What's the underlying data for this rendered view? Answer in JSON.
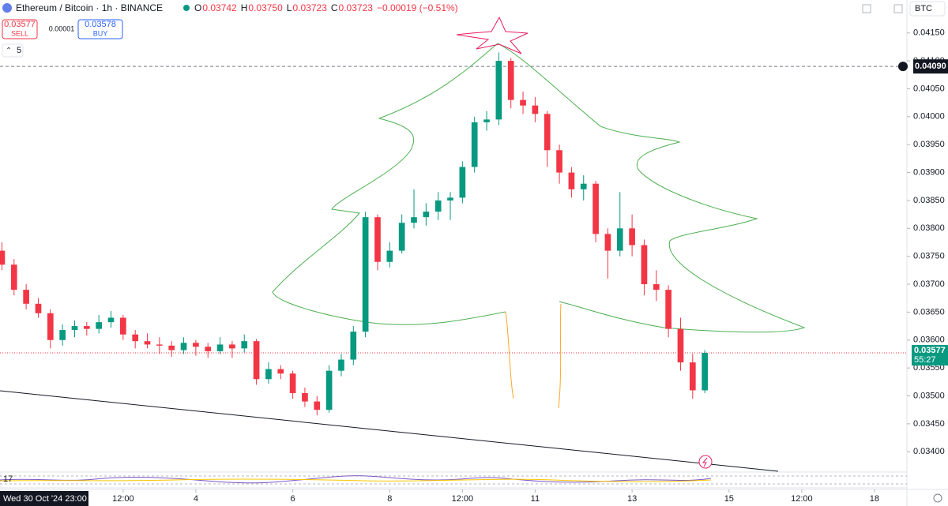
{
  "toolbar": {
    "symbol": "Ethereum / Bitcoin · 1h · BINANCE",
    "ohlc": [
      {
        "label": "O",
        "value": "0.03742"
      },
      {
        "label": "H",
        "value": "0.03750"
      },
      {
        "label": "L",
        "value": "0.03723"
      },
      {
        "label": "C",
        "value": "0.03723"
      }
    ],
    "change": "−0.00019 (−0.51%)",
    "sell": {
      "price": "0.03577",
      "label": "SELL"
    },
    "spread": "0.00001",
    "buy": {
      "price": "0.03578",
      "label": "BUY"
    },
    "indicators_count": "5",
    "currency": "BTC"
  },
  "chart_data": {
    "type": "candlestick",
    "x": [
      0,
      0.25,
      0.5,
      0.75,
      1,
      1.25,
      1.5,
      1.75,
      2,
      2.25,
      2.5,
      2.75,
      3,
      3.25,
      3.5,
      3.75,
      4,
      4.25,
      4.5,
      4.75,
      5,
      5.25,
      5.5,
      5.75,
      6,
      6.25,
      6.5,
      6.75,
      7,
      7.25,
      7.5,
      7.75,
      8,
      8.25,
      8.5,
      8.75,
      9,
      9.25,
      9.5,
      9.75,
      10,
      10.25,
      10.5,
      10.75,
      11,
      11.25,
      11.5,
      11.75,
      12,
      12.25,
      12.5,
      12.75,
      13,
      13.25,
      13.5,
      13.75,
      14,
      14.25,
      14.5
    ],
    "open": [
      0.0376,
      0.03735,
      0.0369,
      0.03665,
      0.03648,
      0.036,
      0.03618,
      0.03625,
      0.0362,
      0.03632,
      0.0364,
      0.0361,
      0.03598,
      0.03592,
      0.0359,
      0.03582,
      0.03595,
      0.03588,
      0.0358,
      0.03592,
      0.03585,
      0.03598,
      0.0353,
      0.03548,
      0.0354,
      0.03505,
      0.0349,
      0.03475,
      0.03545,
      0.03565,
      0.03615,
      0.0382,
      0.0374,
      0.0376,
      0.0381,
      0.0382,
      0.0383,
      0.0385,
      0.03855,
      0.0391,
      0.0399,
      0.03995,
      0.041,
      0.0403,
      0.0402,
      0.04005,
      0.0394,
      0.039,
      0.0387,
      0.0388,
      0.0379,
      0.0376,
      0.038,
      0.0377,
      0.037,
      0.0369,
      0.0362,
      0.0356,
      0.0351
    ],
    "high": [
      0.03775,
      0.03745,
      0.037,
      0.03675,
      0.03655,
      0.03628,
      0.03635,
      0.03632,
      0.03645,
      0.03652,
      0.03645,
      0.03618,
      0.03612,
      0.03605,
      0.03598,
      0.03605,
      0.036,
      0.03595,
      0.03605,
      0.03598,
      0.0361,
      0.03602,
      0.0356,
      0.03555,
      0.03545,
      0.03515,
      0.035,
      0.03555,
      0.03575,
      0.03625,
      0.0383,
      0.03825,
      0.03775,
      0.03825,
      0.0387,
      0.03845,
      0.03865,
      0.03865,
      0.0392,
      0.04,
      0.0401,
      0.04115,
      0.04105,
      0.04045,
      0.04035,
      0.0401,
      0.0395,
      0.0391,
      0.03895,
      0.03885,
      0.038,
      0.03865,
      0.03825,
      0.0378,
      0.03725,
      0.03698,
      0.0364,
      0.03575,
      0.03582
    ],
    "low": [
      0.03725,
      0.0368,
      0.03655,
      0.0364,
      0.03585,
      0.0359,
      0.03605,
      0.03608,
      0.03612,
      0.03622,
      0.036,
      0.03585,
      0.03585,
      0.03575,
      0.0357,
      0.03575,
      0.03572,
      0.03568,
      0.03575,
      0.03568,
      0.03578,
      0.0352,
      0.03522,
      0.0353,
      0.03495,
      0.0348,
      0.03465,
      0.0347,
      0.03535,
      0.03555,
      0.03605,
      0.03725,
      0.0373,
      0.03755,
      0.038,
      0.03805,
      0.03815,
      0.03815,
      0.03845,
      0.039,
      0.03975,
      0.03985,
      0.04015,
      0.04005,
      0.0399,
      0.0391,
      0.0388,
      0.03855,
      0.0385,
      0.03775,
      0.0371,
      0.0375,
      0.0375,
      0.0368,
      0.0367,
      0.03605,
      0.03545,
      0.03495,
      0.03505
    ],
    "close": [
      0.03735,
      0.0369,
      0.03665,
      0.03648,
      0.036,
      0.03618,
      0.03625,
      0.0362,
      0.03632,
      0.0364,
      0.0361,
      0.03598,
      0.03592,
      0.0359,
      0.03582,
      0.03595,
      0.03588,
      0.0358,
      0.03592,
      0.03585,
      0.03598,
      0.0353,
      0.03548,
      0.0354,
      0.03505,
      0.0349,
      0.03475,
      0.03545,
      0.03565,
      0.03615,
      0.0382,
      0.0374,
      0.0376,
      0.0381,
      0.0382,
      0.0383,
      0.0385,
      0.03855,
      0.0391,
      0.0399,
      0.03995,
      0.041,
      0.0403,
      0.0402,
      0.04005,
      0.0394,
      0.039,
      0.0387,
      0.0388,
      0.0379,
      0.0376,
      0.038,
      0.0377,
      0.037,
      0.0369,
      0.0362,
      0.0356,
      0.0351,
      0.03577
    ],
    "up_color": "#089981",
    "down_color": "#f23645",
    "xlim": [
      -0.04,
      18.67
    ],
    "xticks": [
      {
        "value": 2.5,
        "label": "12:00"
      },
      4,
      6,
      8,
      {
        "value": 9.5,
        "label": "12:00"
      },
      11,
      13,
      15,
      {
        "value": 16.5,
        "label": "12:00"
      },
      18
    ],
    "ylim": [
      0.03365,
      0.04209
    ],
    "yticks": [
      {
        "value": 0.034,
        "label": "0.03400"
      },
      {
        "value": 0.0345,
        "label": "0.03450"
      },
      {
        "value": 0.035,
        "label": "0.03500"
      },
      {
        "value": 0.0355,
        "label": "0.03550"
      },
      {
        "value": 0.036,
        "label": "0.03600"
      },
      {
        "value": 0.0365,
        "label": "0.03650"
      },
      {
        "value": 0.037,
        "label": "0.03700"
      },
      {
        "value": 0.0375,
        "label": "0.03750"
      },
      {
        "value": 0.038,
        "label": "0.03800"
      },
      {
        "value": 0.0385,
        "label": "0.03850"
      },
      {
        "value": 0.039,
        "label": "0.03900"
      },
      {
        "value": 0.0395,
        "label": "0.03950"
      },
      {
        "value": 0.04,
        "label": "0.04000"
      },
      {
        "value": 0.0405,
        "label": "0.04050"
      },
      {
        "value": 0.041,
        "label": "0.04100"
      },
      {
        "value": 0.0415,
        "label": "0.04150"
      }
    ],
    "grid": false,
    "last_price": {
      "value": 0.03577,
      "label": "0.03577",
      "countdown": "55:27",
      "color": "#089981"
    },
    "crosshair": {
      "value": 0.0409,
      "label": "0.04090",
      "time_label": "Wed 30 Oct '24 23:00"
    }
  }
}
